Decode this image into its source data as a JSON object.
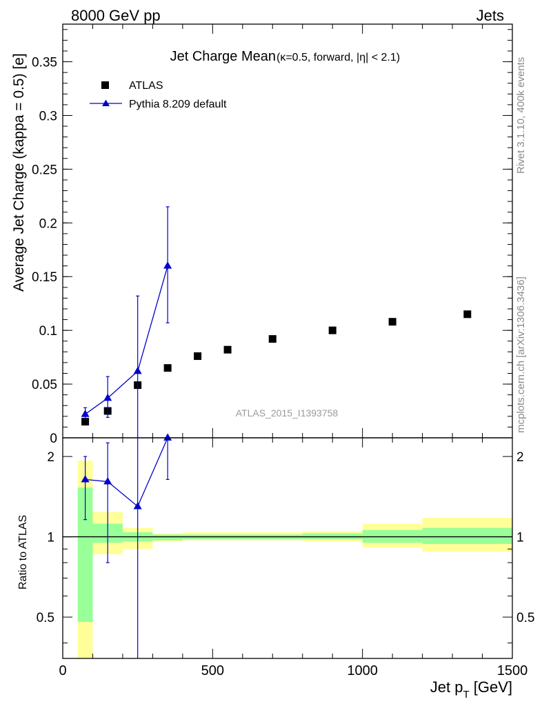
{
  "header": {
    "left": "8000 GeV pp",
    "right": "Jets"
  },
  "side_labels": {
    "rivet": "Rivet 3.1.10,  400k events",
    "mcplots": "mcplots.cern.ch [arXiv:1306.3436]"
  },
  "chart_data": [
    {
      "type": "scatter",
      "panel": "main",
      "title": "Jet Charge Mean",
      "title_detail": "(κ=0.5, forward, |η| < 2.1)",
      "ylabel": "Average Jet Charge (kappa = 0.5) [e]",
      "xlim": [
        0,
        1500
      ],
      "ylim": [
        0,
        0.385
      ],
      "y_ticks": [
        "0",
        "0.05",
        "0.1",
        "0.15",
        "0.2",
        "0.25",
        "0.3",
        "0.35"
      ],
      "watermark": "ATLAS_2015_I1393758",
      "legend_position": "top-left",
      "series": [
        {
          "name": "ATLAS",
          "color": "#000000",
          "marker": "square",
          "x": [
            75,
            150,
            250,
            350,
            450,
            550,
            700,
            900,
            1100,
            1350
          ],
          "y": [
            0.015,
            0.025,
            0.049,
            0.065,
            0.076,
            0.082,
            0.092,
            0.1,
            0.108,
            0.115
          ]
        },
        {
          "name": "Pythia 8.209 default",
          "color": "#0000cc",
          "marker": "triangle",
          "x": [
            75,
            150,
            250,
            350
          ],
          "y": [
            0.022,
            0.037,
            0.062,
            0.16
          ],
          "y_low": [
            0.017,
            0.019,
            0.0,
            0.107
          ],
          "y_high": [
            0.028,
            0.057,
            0.132,
            0.215
          ]
        }
      ]
    },
    {
      "type": "line",
      "panel": "ratio",
      "xlabel": "Jet p_T [GeV]",
      "ylabel": "Ratio to ATLAS",
      "xlim": [
        0,
        1500
      ],
      "ylim": [
        0.35,
        2.35
      ],
      "y_scale": "log",
      "x_ticks": [
        "0",
        "500",
        "1000",
        "1500"
      ],
      "y_ticks": [
        "0.5",
        "1",
        "2"
      ],
      "reference_line": 1,
      "bands": {
        "edges": [
          50,
          100,
          200,
          300,
          400,
          600,
          800,
          1000,
          1200,
          1500
        ],
        "inner_color": "#99ff99",
        "outer_color": "#ffff99",
        "inner_low": [
          0.48,
          0.95,
          0.96,
          0.97,
          0.98,
          0.98,
          0.98,
          0.95,
          0.94
        ],
        "inner_high": [
          1.53,
          1.12,
          1.04,
          1.02,
          1.02,
          1.02,
          1.03,
          1.06,
          1.08
        ],
        "outer_low": [
          0.35,
          0.86,
          0.9,
          0.96,
          0.97,
          0.97,
          0.96,
          0.91,
          0.88
        ],
        "outer_high": [
          1.93,
          1.24,
          1.08,
          1.03,
          1.04,
          1.04,
          1.05,
          1.12,
          1.18
        ]
      },
      "series": [
        {
          "name": "Pythia 8.209 default",
          "color": "#0000cc",
          "marker": "triangle",
          "x": [
            75,
            150,
            250,
            350
          ],
          "y": [
            1.64,
            1.61,
            1.3,
            2.35
          ],
          "y_low": [
            1.16,
            0.8,
            0.35,
            1.64
          ],
          "y_high": [
            2.0,
            2.25,
            2.35,
            2.35
          ]
        }
      ]
    }
  ]
}
